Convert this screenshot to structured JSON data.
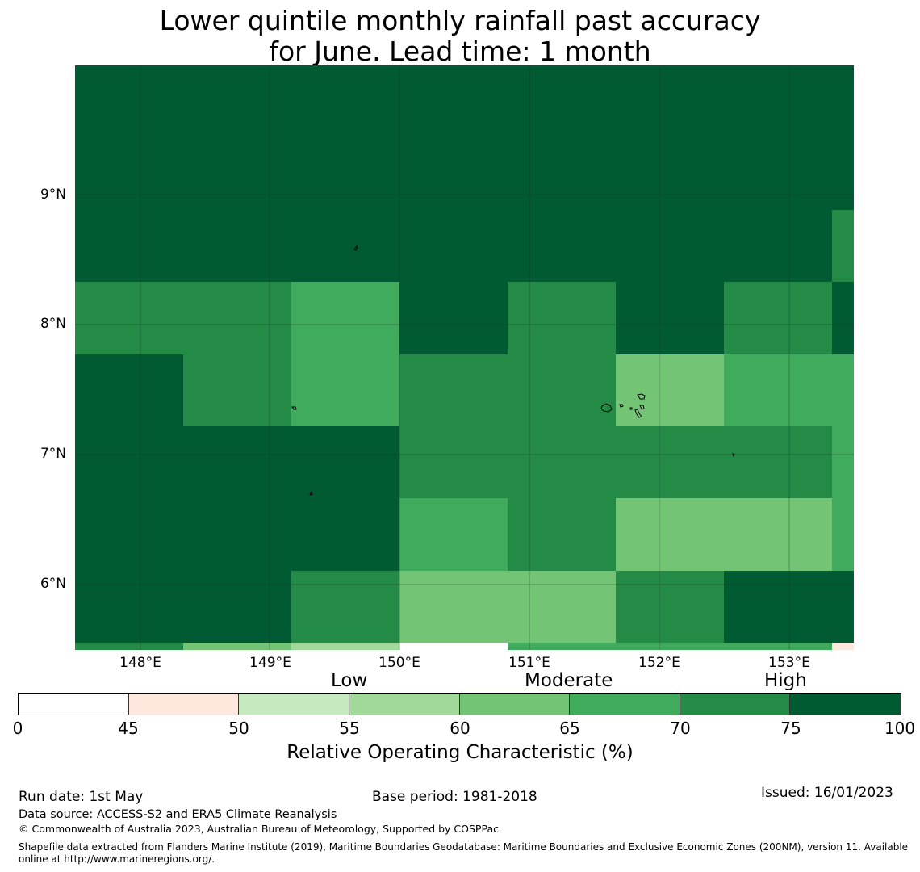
{
  "title": {
    "line1": "Lower quintile monthly rainfall past accuracy",
    "line2": "for June. Lead time: 1 month"
  },
  "map": {
    "lat_labels": [
      "9°N",
      "8°N",
      "7°N",
      "6°N"
    ],
    "lon_labels": [
      "148°E",
      "149°E",
      "150°E",
      "151°E",
      "152°E",
      "153°E"
    ],
    "rows": [
      {
        "band": "north",
        "cells": [
          "75-100",
          "75-100",
          "75-100",
          "75-100",
          "75-100",
          "75-100",
          "75-100",
          "75-100"
        ]
      },
      {
        "band": "8.3N-8.8N",
        "cells": [
          "75-100",
          "75-100",
          "75-100",
          "75-100",
          "75-100",
          "75-100",
          "75-100",
          "70-75"
        ]
      },
      {
        "band": "7.8N-8.3N",
        "cells": [
          "70-75",
          "70-75",
          "65-70",
          "75-100",
          "70-75",
          "75-100",
          "70-75",
          "75-100"
        ]
      },
      {
        "band": "7.2N-7.8N",
        "cells": [
          "75-100",
          "70-75",
          "65-70",
          "70-75",
          "70-75",
          "60-65",
          "65-70",
          "65-70"
        ]
      },
      {
        "band": "6.7N-7.2N",
        "cells": [
          "75-100",
          "75-100",
          "75-100",
          "70-75",
          "70-75",
          "70-75",
          "70-75",
          "65-70"
        ]
      },
      {
        "band": "6.1N-6.7N",
        "cells": [
          "75-100",
          "75-100",
          "75-100",
          "65-70",
          "70-75",
          "60-65",
          "60-65",
          "65-70"
        ]
      },
      {
        "band": "5.6N-6.1N",
        "cells": [
          "75-100",
          "75-100",
          "70-75",
          "60-65",
          "60-65",
          "70-75",
          "75-100",
          "75-100"
        ]
      },
      {
        "band": "southern edge",
        "cells": [
          "70-75",
          "60-65",
          "55-60",
          "white",
          "65-70",
          "65-70",
          "65-70",
          "45-50"
        ]
      }
    ]
  },
  "colorbar": {
    "category_labels": [
      "Low",
      "Moderate",
      "High"
    ],
    "ticks": [
      "0",
      "45",
      "50",
      "55",
      "60",
      "65",
      "70",
      "75",
      "100"
    ],
    "segments": [
      {
        "range": "0-45",
        "color": "#ffffff"
      },
      {
        "range": "45-50",
        "color": "#fee8de"
      },
      {
        "range": "50-55",
        "color": "#c7e9c0"
      },
      {
        "range": "55-60",
        "color": "#a1d99b"
      },
      {
        "range": "60-65",
        "color": "#74c476"
      },
      {
        "range": "65-70",
        "color": "#41ab5d"
      },
      {
        "range": "70-75",
        "color": "#238b45"
      },
      {
        "range": "75-100",
        "color": "#005a32"
      }
    ],
    "axis_title": "Relative Operating Characteristic (%)"
  },
  "footer": {
    "run_date": "Run date: 1st May",
    "base_period": "Base period: 1981-2018",
    "issued": "Issued: 16/01/2023",
    "data_source": "Data source: ACCESS-S2 and ERA5 Climate Reanalysis",
    "copyright": "© Commonwealth of Australia 2023, Australian Bureau of Meteorology, Supported by COSPPac",
    "shapefile_line1": "Shapefile data extracted from Flanders Marine Institute (2019), Maritime Boundaries Geodatabase: Maritime Boundaries and Exclusive Economic Zones (200NM), version 11. Available",
    "shapefile_line2": "online at http://www.marineregions.org/."
  }
}
